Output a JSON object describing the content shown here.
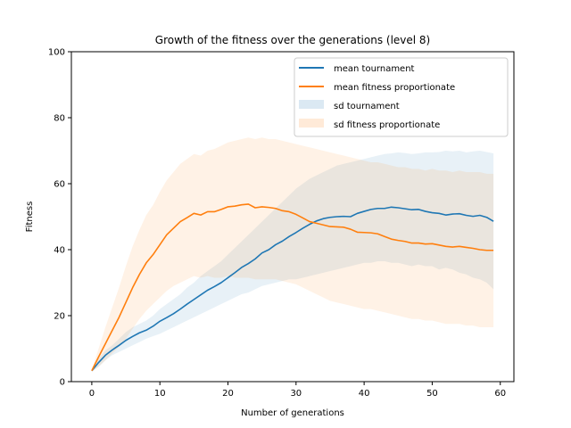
{
  "chart_data": {
    "type": "line",
    "title": "Growth of the fitness over the generations (level 8)",
    "xlabel": "Number of generations",
    "ylabel": "Fitness",
    "xlim": [
      -3,
      62
    ],
    "ylim": [
      0,
      100
    ],
    "xticks": [
      0,
      10,
      20,
      30,
      40,
      50,
      60
    ],
    "yticks": [
      0,
      20,
      40,
      60,
      80,
      100
    ],
    "grid": false,
    "legend_position": "top-right",
    "x": [
      0,
      1,
      2,
      3,
      4,
      5,
      6,
      7,
      8,
      9,
      10,
      11,
      12,
      13,
      14,
      15,
      16,
      17,
      18,
      19,
      20,
      21,
      22,
      23,
      24,
      25,
      26,
      27,
      28,
      29,
      30,
      31,
      32,
      33,
      34,
      35,
      36,
      37,
      38,
      39,
      40,
      41,
      42,
      43,
      44,
      45,
      46,
      47,
      48,
      49,
      50,
      51,
      52,
      53,
      54,
      55,
      56,
      57,
      58,
      59
    ],
    "series": [
      {
        "name": "mean tournament",
        "color": "#1f77b4",
        "values": [
          3.3,
          5.8,
          8.0,
          9.6,
          11.0,
          12.5,
          13.7,
          14.8,
          15.6,
          16.8,
          18.3,
          19.4,
          20.6,
          22.0,
          23.5,
          24.9,
          26.3,
          27.7,
          28.8,
          30.0,
          31.5,
          33.0,
          34.6,
          35.8,
          37.2,
          39.0,
          40.0,
          41.5,
          42.6,
          44.0,
          45.2,
          46.5,
          47.7,
          48.7,
          49.4,
          49.8,
          50.0,
          50.1,
          50.0,
          51.0,
          51.6,
          52.2,
          52.5,
          52.5,
          52.9,
          52.7,
          52.4,
          52.1,
          52.2,
          51.6,
          51.2,
          51.0,
          50.5,
          50.8,
          50.9,
          50.4,
          50.1,
          50.4,
          49.8,
          48.6
        ]
      },
      {
        "name": "mean fitness proportionate",
        "color": "#ff7f0e",
        "values": [
          3.3,
          7.5,
          11.5,
          15.5,
          19.5,
          24.0,
          28.5,
          32.5,
          36.0,
          38.5,
          41.5,
          44.5,
          46.5,
          48.5,
          49.7,
          51.0,
          50.5,
          51.5,
          51.5,
          52.2,
          53.0,
          53.2,
          53.6,
          53.8,
          52.7,
          53.0,
          52.8,
          52.5,
          51.8,
          51.5,
          50.7,
          49.6,
          48.5,
          48.0,
          47.5,
          47.0,
          46.9,
          46.8,
          46.2,
          45.3,
          45.2,
          45.1,
          44.8,
          44.0,
          43.2,
          42.8,
          42.5,
          42.0,
          42.0,
          41.7,
          41.8,
          41.4,
          41.0,
          40.8,
          41.0,
          40.7,
          40.4,
          40.0,
          39.8,
          39.8
        ]
      }
    ],
    "bands": [
      {
        "name": "sd tournament",
        "color": "#1f77b4",
        "opacity": 0.1,
        "lower": [
          3.0,
          4.5,
          6.5,
          8.0,
          9.0,
          10.0,
          11.0,
          12.0,
          13.0,
          13.8,
          14.5,
          15.5,
          16.5,
          17.5,
          18.5,
          19.5,
          20.5,
          21.5,
          22.5,
          23.5,
          24.5,
          25.5,
          26.5,
          27.0,
          28.0,
          29.0,
          29.5,
          30.0,
          30.5,
          31.0,
          31.0,
          31.5,
          32.0,
          32.5,
          33.0,
          33.5,
          34.0,
          34.5,
          35.0,
          35.5,
          36.0,
          36.0,
          36.5,
          36.5,
          36.0,
          36.0,
          35.5,
          35.0,
          35.5,
          35.0,
          35.0,
          34.0,
          34.5,
          34.0,
          33.0,
          32.5,
          31.5,
          31.0,
          30.0,
          28.0
        ],
        "upper": [
          3.6,
          7.0,
          9.5,
          11.0,
          13.0,
          15.0,
          16.5,
          17.5,
          18.5,
          20.0,
          22.0,
          23.5,
          25.0,
          26.5,
          28.5,
          30.0,
          32.0,
          33.5,
          35.0,
          36.5,
          38.5,
          40.5,
          42.5,
          44.5,
          46.5,
          48.5,
          50.5,
          52.5,
          54.5,
          56.5,
          58.5,
          60.0,
          61.5,
          62.5,
          63.5,
          64.5,
          65.5,
          66.0,
          66.5,
          67.0,
          67.5,
          68.0,
          68.5,
          69.0,
          69.2,
          69.5,
          69.3,
          69.0,
          69.2,
          69.5,
          69.5,
          69.6,
          70.0,
          69.8,
          70.0,
          69.5,
          69.8,
          70.0,
          69.6,
          69.2
        ]
      },
      {
        "name": "sd fitness proportionate",
        "color": "#ff7f0e",
        "opacity": 0.1,
        "lower": [
          3.0,
          4.5,
          6.5,
          8.5,
          10.5,
          13.0,
          16.0,
          19.0,
          21.5,
          23.5,
          25.5,
          27.5,
          29.0,
          30.0,
          31.0,
          32.0,
          31.5,
          32.0,
          31.5,
          31.5,
          32.0,
          31.5,
          31.5,
          31.5,
          31.0,
          31.0,
          31.0,
          31.0,
          30.5,
          30.0,
          29.5,
          28.5,
          27.5,
          26.5,
          25.5,
          24.5,
          24.0,
          23.5,
          23.0,
          22.5,
          22.0,
          22.0,
          21.5,
          21.0,
          20.5,
          20.0,
          19.5,
          19.0,
          19.0,
          18.5,
          18.5,
          18.0,
          17.5,
          17.5,
          17.5,
          17.0,
          17.0,
          16.5,
          16.5,
          16.5
        ],
        "upper": [
          3.6,
          10.0,
          16.5,
          22.5,
          28.5,
          35.0,
          41.0,
          46.0,
          50.5,
          53.5,
          57.5,
          61.0,
          63.5,
          66.0,
          67.5,
          69.0,
          68.5,
          70.0,
          70.5,
          71.5,
          72.5,
          73.0,
          73.5,
          74.0,
          73.5,
          74.0,
          73.5,
          73.5,
          73.0,
          72.5,
          72.0,
          71.5,
          71.0,
          70.5,
          70.0,
          69.5,
          69.0,
          68.5,
          68.0,
          67.5,
          67.0,
          66.5,
          66.5,
          66.0,
          65.5,
          65.0,
          65.0,
          64.5,
          64.5,
          64.0,
          64.5,
          64.0,
          64.0,
          63.5,
          64.0,
          63.5,
          63.5,
          63.5,
          63.0,
          63.0
        ]
      }
    ]
  }
}
